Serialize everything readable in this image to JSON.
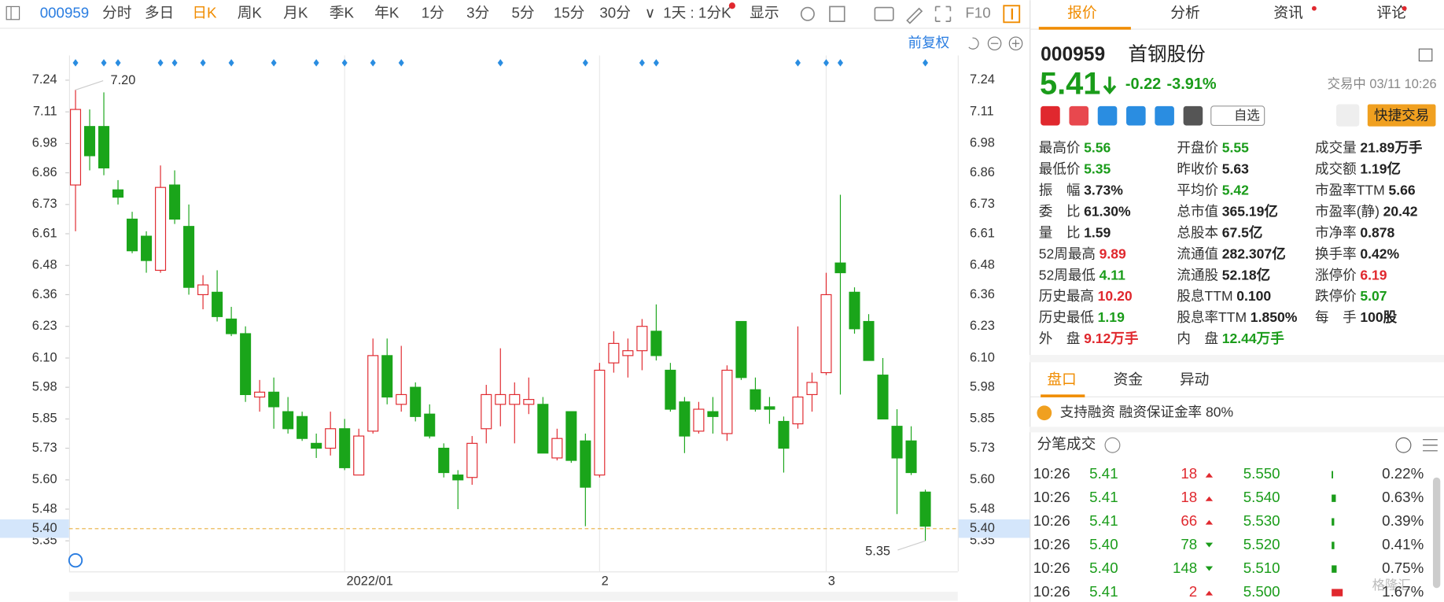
{
  "toolbar": {
    "code": "000959",
    "periods": [
      "分时",
      "多日",
      "日K",
      "周K",
      "月K",
      "季K",
      "年K",
      "1分",
      "3分",
      "5分",
      "15分",
      "30分"
    ],
    "interval": "1天 : 1分K",
    "display": "显示",
    "f10": "F10",
    "adjust": "前复权"
  },
  "tabs": [
    "报价",
    "分析",
    "资讯",
    "评论"
  ],
  "chart_data": {
    "type": "candlestick",
    "up_color": "#e0282e",
    "down_color": "#1aa51a",
    "categories": [
      null,
      null,
      null,
      null,
      null,
      null,
      null,
      null,
      null,
      null,
      null,
      null,
      null,
      null,
      null,
      null,
      null,
      null,
      null,
      "2022/01",
      null,
      null,
      null,
      null,
      null,
      null,
      null,
      null,
      null,
      null,
      null,
      null,
      null,
      null,
      null,
      null,
      null,
      "2",
      null,
      null,
      null,
      null,
      null,
      null,
      null,
      null,
      null,
      null,
      null,
      null,
      null,
      null,
      null,
      "3",
      null,
      null,
      null,
      null,
      null,
      null,
      null
    ],
    "open": [
      6.81,
      7.05,
      7.05,
      6.79,
      6.67,
      6.6,
      6.46,
      6.81,
      6.64,
      6.36,
      6.37,
      6.26,
      6.2,
      5.94,
      5.96,
      5.88,
      5.86,
      5.75,
      5.73,
      5.81,
      5.62,
      5.8,
      6.11,
      5.91,
      5.98,
      5.87,
      5.73,
      5.62,
      5.61,
      5.81,
      5.91,
      5.91,
      5.91,
      5.91,
      5.69,
      5.88,
      5.76,
      5.62,
      6.08,
      6.11,
      6.13,
      6.21,
      6.05,
      5.92,
      5.8,
      5.88,
      5.79,
      6.25,
      5.97,
      5.9,
      5.84,
      5.83,
      5.95,
      6.04,
      6.49,
      6.37,
      6.25,
      6.03,
      5.82,
      5.76,
      5.55
    ],
    "high": [
      7.2,
      7.12,
      7.19,
      6.83,
      6.7,
      6.62,
      6.89,
      6.87,
      6.73,
      6.44,
      6.46,
      6.31,
      6.23,
      6.01,
      6.02,
      5.94,
      5.88,
      5.79,
      5.88,
      5.85,
      5.81,
      6.18,
      6.18,
      6.15,
      6.0,
      5.91,
      5.75,
      5.64,
      5.78,
      5.99,
      6.14,
      6.0,
      6.02,
      5.94,
      5.81,
      5.88,
      5.79,
      6.08,
      6.21,
      6.18,
      6.26,
      6.32,
      6.08,
      5.94,
      5.92,
      5.94,
      6.07,
      6.25,
      6.02,
      5.94,
      5.86,
      6.23,
      6.04,
      6.45,
      6.77,
      6.39,
      6.28,
      6.1,
      5.89,
      5.82,
      5.56
    ],
    "low": [
      6.62,
      6.87,
      6.85,
      6.73,
      6.53,
      6.45,
      6.45,
      6.65,
      6.36,
      6.3,
      6.25,
      6.19,
      5.92,
      5.88,
      5.81,
      5.79,
      5.76,
      5.69,
      5.7,
      5.64,
      5.62,
      5.79,
      5.91,
      5.88,
      5.84,
      5.77,
      5.61,
      5.48,
      5.58,
      5.75,
      5.82,
      5.75,
      5.87,
      5.71,
      5.68,
      5.67,
      5.41,
      5.61,
      6.04,
      6.02,
      6.05,
      6.09,
      5.88,
      5.71,
      5.79,
      5.79,
      5.76,
      6.01,
      5.88,
      5.83,
      5.63,
      5.81,
      5.88,
      6.03,
      5.95,
      6.2,
      6.09,
      5.85,
      5.46,
      5.62,
      5.35
    ],
    "close": [
      7.12,
      6.93,
      6.88,
      6.76,
      6.54,
      6.5,
      6.8,
      6.67,
      6.39,
      6.4,
      6.27,
      6.2,
      5.95,
      5.96,
      5.9,
      5.81,
      5.77,
      5.73,
      5.81,
      5.65,
      5.78,
      6.11,
      5.94,
      5.95,
      5.86,
      5.78,
      5.63,
      5.6,
      5.75,
      5.95,
      5.95,
      5.95,
      5.93,
      5.71,
      5.77,
      5.68,
      5.57,
      6.05,
      6.16,
      6.13,
      6.23,
      6.11,
      5.89,
      5.78,
      5.89,
      5.86,
      6.05,
      6.02,
      5.89,
      5.89,
      5.73,
      5.94,
      6.0,
      6.36,
      6.45,
      6.22,
      6.09,
      5.85,
      5.69,
      5.63,
      5.41
    ],
    "ylim": [
      5.3,
      7.34
    ],
    "yticks": [
      7.24,
      7.11,
      6.98,
      6.86,
      6.73,
      6.61,
      6.48,
      6.36,
      6.23,
      {
        "value": 6.1,
        "label": "6.10"
      },
      5.98,
      5.85,
      5.73,
      {
        "value": 5.6,
        "label": "5.60"
      },
      5.48,
      5.35
    ],
    "max_label": {
      "value": 7.2,
      "label": "7.20"
    },
    "min_label": {
      "value": 5.35,
      "label": "5.35"
    },
    "price_line": {
      "value": 5.4,
      "label": "5.40"
    },
    "grid": false
  },
  "quote": {
    "code": "000959",
    "name": "首钢股份",
    "price": "5.41",
    "change": "-0.22",
    "change_pct": "-3.91%",
    "status": "交易中 03/11 10:26",
    "watch": "自选",
    "trade": "快捷交易"
  },
  "stats": [
    {
      "label": "最高价",
      "value": "5.56",
      "color": "#1a9c1a"
    },
    {
      "label": "开盘价",
      "value": "5.55",
      "color": "#1a9c1a"
    },
    {
      "label": "成交量",
      "value": "21.89万手",
      "color": "#222"
    },
    {
      "label": "最低价",
      "value": "5.35",
      "color": "#1a9c1a"
    },
    {
      "label": "昨收价",
      "value": "5.63",
      "color": "#222"
    },
    {
      "label": "成交额",
      "value": "1.19亿",
      "color": "#222"
    },
    {
      "label": "振　幅",
      "value": "3.73%",
      "color": "#222"
    },
    {
      "label": "平均价",
      "value": "5.42",
      "color": "#1a9c1a"
    },
    {
      "label": "市盈率TTM",
      "value": "5.66",
      "color": "#222"
    },
    {
      "label": "委　比",
      "value": "61.30%",
      "color": "#222"
    },
    {
      "label": "总市值",
      "value": "365.19亿",
      "color": "#222"
    },
    {
      "label": "市盈率(静)",
      "value": "20.42",
      "color": "#222"
    },
    {
      "label": "量　比",
      "value": "1.59",
      "color": "#222"
    },
    {
      "label": "总股本",
      "value": "67.5亿",
      "color": "#222"
    },
    {
      "label": "市净率",
      "value": "0.878",
      "color": "#222"
    },
    {
      "label": "52周最高",
      "value": "9.89",
      "color": "#e0282e"
    },
    {
      "label": "流通值",
      "value": "282.307亿",
      "color": "#222"
    },
    {
      "label": "换手率",
      "value": "0.42%",
      "color": "#222"
    },
    {
      "label": "52周最低",
      "value": "4.11",
      "color": "#1a9c1a"
    },
    {
      "label": "流通股",
      "value": "52.18亿",
      "color": "#222"
    },
    {
      "label": "涨停价",
      "value": "6.19",
      "color": "#e0282e"
    },
    {
      "label": "历史最高",
      "value": "10.20",
      "color": "#e0282e"
    },
    {
      "label": "股息TTM",
      "value": "0.100",
      "color": "#222"
    },
    {
      "label": "跌停价",
      "value": "5.07",
      "color": "#1a9c1a"
    },
    {
      "label": "历史最低",
      "value": "1.19",
      "color": "#1a9c1a"
    },
    {
      "label": "股息率TTM",
      "value": "1.850%",
      "color": "#222"
    },
    {
      "label": "每　手",
      "value": "100股",
      "color": "#222"
    },
    {
      "label": "外　盘",
      "value": "9.12万手",
      "color": "#e0282e"
    },
    {
      "label": "内　盘",
      "value": "12.44万手",
      "color": "#1a9c1a"
    }
  ],
  "subtabs": [
    "盘口",
    "资金",
    "异动"
  ],
  "margin": "支持融资 融资保证金率 80%",
  "trades_title": "分笔成交",
  "trades": [
    {
      "time": "10:26",
      "price": "5.41",
      "volume": "18",
      "side": "up",
      "book": "5.550",
      "pct": 0.22,
      "pct_label": "0.22%"
    },
    {
      "time": "10:26",
      "price": "5.41",
      "volume": "18",
      "side": "up",
      "book": "5.540",
      "pct": 0.63,
      "pct_label": "0.63%"
    },
    {
      "time": "10:26",
      "price": "5.41",
      "volume": "66",
      "side": "up",
      "book": "5.530",
      "pct": 0.39,
      "pct_label": "0.39%"
    },
    {
      "time": "10:26",
      "price": "5.40",
      "volume": "78",
      "side": "down",
      "book": "5.520",
      "pct": 0.41,
      "pct_label": "0.41%"
    },
    {
      "time": "10:26",
      "price": "5.40",
      "volume": "148",
      "side": "down",
      "book": "5.510",
      "pct": 0.75,
      "pct_label": "0.75%"
    },
    {
      "time": "10:26",
      "price": "5.41",
      "volume": "2",
      "side": "up",
      "book": "5.500",
      "pct": 1.67,
      "pct_label": "1.67%"
    }
  ],
  "watermark": "格隆汇"
}
